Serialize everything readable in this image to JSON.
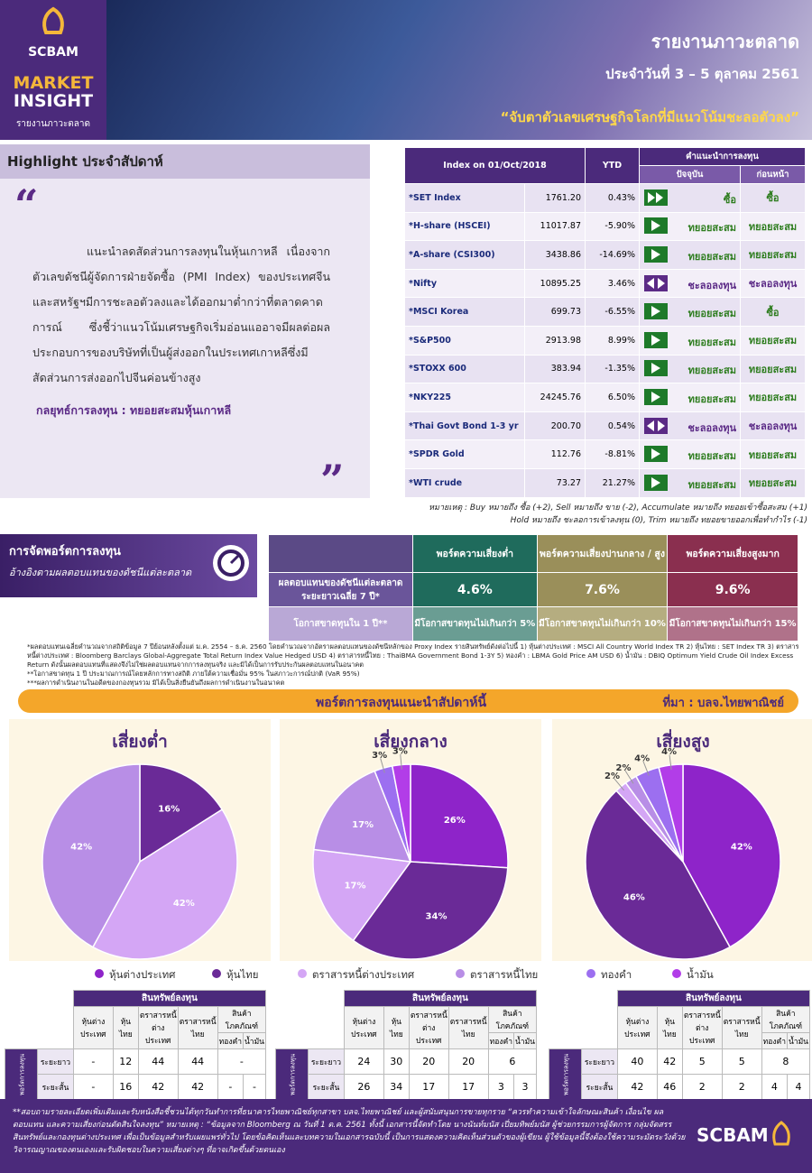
{
  "header": {
    "logo": "SCBAM",
    "brand": [
      "MARKET",
      "INSIGHT"
    ],
    "brand_sub": "รายงานภาวะตลาด",
    "title": "รายงานภาวะตลาด",
    "date": "ประจำวันที่ 3 – 5 ตุลาคม 2561",
    "tagline": "“จับตาตัวเลขเศรษฐกิจโลกที่มีแนวโน้มชะลอตัวลง”"
  },
  "highlight": {
    "title": "Highlight ประจำสัปดาห์",
    "open_quote": "“",
    "close_quote": "”",
    "body": "แนะนำลดสัดส่วนการลงทุนในหุ้นเกาหลี เนื่องจากตัวเลขดัชนีผู้จัดการฝ่ายจัดซื้อ (PMI Index) ของประเทศจีนและสหรัฐฯมีการชะลอตัวลงและได้ออกมาต่ำกว่าที่ตลาดคาดการณ์ ซึ่งชี้ว่าแนวโน้มเศรษฐกิจเริ่มอ่อนแออาจมีผลต่อผลประกอบการของบริษัทที่เป็นผู้ส่งออกในประเทศเกาหลีซึ่งมีสัดส่วนการส่งออกไปจีนค่อนข้างสูง",
    "strategy": "กลยุทธ์การลงทุน : ทยอยสะสมหุ้นเกาหลี"
  },
  "index_table": {
    "headers": [
      "Index on 01/Oct/2018",
      "YTD",
      "คำแนะนำการลงทุน",
      "ปัจจุบัน",
      "ก่อนหน้า"
    ],
    "rows": [
      [
        "*SET Index",
        "1761.20",
        "0.43%",
        "ซื้อ",
        "ซื้อ"
      ],
      [
        "*H-share (HSCEI)",
        "11017.87",
        "-5.90%",
        "ทยอยสะสม",
        "ทยอยสะสม"
      ],
      [
        "*A-share (CSI300)",
        "3438.86",
        "-14.69%",
        "ทยอยสะสม",
        "ทยอยสะสม"
      ],
      [
        "*Nifty",
        "10895.25",
        "3.46%",
        "ชะลอลงทุน",
        "ชะลอลงทุน"
      ],
      [
        "*MSCI Korea",
        "699.73",
        "-6.55%",
        "ทยอยสะสม",
        "ซื้อ"
      ],
      [
        "*S&P500",
        "2913.98",
        "8.99%",
        "ทยอยสะสม",
        "ทยอยสะสม"
      ],
      [
        "*STOXX 600",
        "383.94",
        "-1.35%",
        "ทยอยสะสม",
        "ทยอยสะสม"
      ],
      [
        "*NKY225",
        "24245.76",
        "6.50%",
        "ทยอยสะสม",
        "ทยอยสะสม"
      ],
      [
        "*Thai Govt Bond 1-3 yr",
        "200.70",
        "0.54%",
        "ชะลอลงทุน",
        "ชะลอลงทุน"
      ],
      [
        "*SPDR Gold",
        "112.76",
        "-8.81%",
        "ทยอยสะสม",
        "ทยอยสะสม"
      ],
      [
        "*WTI crude",
        "73.27",
        "21.27%",
        "ทยอยสะสม",
        "ทยอยสะสม"
      ]
    ]
  },
  "note": [
    "หมายเหตุ : Buy หมายถึง ซื้อ (+2), Sell หมายถึง ขาย (-2), Accumulate หมายถึง ทยอยเข้าซื้อสะสม (+1)",
    "Hold หมายถึง ชะลอการเข้าลงทุน (0), Trim หมายถึง ทยอยขายออกเพื่อทำกำไร (-1)"
  ],
  "portfolio": {
    "title": "การจัดพอร์ตการลงทุน",
    "subtitle": "อ้างอิงตามผลตอบแทนของดัชนีแต่ละตลาด",
    "columns": [
      "พอร์ตความเสี่ยงต่ำ",
      "พอร์ตความเสี่ยงปานกลาง / สูง",
      "พอร์ตความเสี่ยงสูงมาก"
    ],
    "rows": [
      {
        "label": "ผลตอบแทนของดัชนีแต่ละตลาดระยะยาวเฉลี่ย 7 ปี*",
        "cells": [
          "4.6%",
          "7.6%",
          "9.6%"
        ]
      },
      {
        "label": "โอกาสขาดทุนใน 1 ปี**",
        "cells": [
          "มีโอกาสขาดทุนไม่เกินกว่า 5%",
          "มีโอกาสขาดทุนไม่เกินกว่า 10%",
          "มีโอกาสขาดทุนไม่เกินกว่า 15%"
        ]
      }
    ]
  },
  "footnotes": [
    "*ผลตอบแทนเฉลี่ยคำนวณจากสถิติข้อมูล 7 ปีย้อนหลังตั้งแต่ ม.ค. 2554 – ธ.ค. 2560 โดยคำนวณจากอัตราผลตอบแทนของดัชนีหลักของ Proxy Index รายสินทรัพย์ดังต่อไปนี้ 1) หุ้นต่างประเทศ : MSCI All Country World Index TR 2) หุ้นไทย : SET Index TR 3) ตราสารหนี้ต่างประเทศ : Bloomberg Barclays Global-Aggregate Total Return Index Value Hedged USD 4) ตราสารหนี้ไทย : ThaiBMA Government Bond 1-3Y 5) ทองคำ : LBMA Gold Price AM USD 6) น้ำมัน : DBIQ Optimum Yield Crude Oil Index Excess Return ดังนั้นผลตอบแทนที่แสดงจึงไม่ใช่ผลตอบแทนจากการลงทุนจริง และมิได้เป็นการรับประกันผลตอบแทนในอนาคต",
    "**โอกาสขาดทุน 1 ปี ประมาณการณ์โดยหลักการทางสถิติ ภายใต้ความเชื่อมั่น 95% ในสภาวะการณ์ปกติ (VaR 95%)",
    "***ผลการดำเนินงานในอดีตของกองทุนรวม มิได้เป็นสิ่งยืนยันถึงผลการดำเนินงานในอนาคต"
  ],
  "banner": {
    "title": "พอร์ตการลงทุนแนะนำสัปดาห์นี้",
    "source": "ที่มา : บลจ.ไทยพาณิชย์"
  },
  "legend": {
    "names": [
      "หุ้นต่างประเทศ",
      "หุ้นไทย",
      "ตราสารหนี้ต่างประเทศ",
      "ตราสารหนี้ไทย",
      "ทองคำ",
      "น้ำมัน"
    ],
    "colors": [
      "#8e24c9",
      "#6a2a97",
      "#d4a6f5",
      "#b88ee6",
      "#9c6ff0",
      "#b23de8"
    ]
  },
  "chart_data": [
    {
      "type": "pie",
      "title": "เสี่ยงต่ำ",
      "categories": [
        "หุ้นไทย",
        "ตราสารหนี้ต่างประเทศ",
        "ตราสารหนี้ไทย"
      ],
      "values": [
        16,
        42,
        42
      ],
      "value_labels": [
        "16%",
        "42%",
        "42%"
      ],
      "colors": [
        "#6a2a97",
        "#d4a6f5",
        "#b88ee6"
      ]
    },
    {
      "type": "pie",
      "title": "เสี่ยงกลาง",
      "categories": [
        "หุ้นต่างประเทศ",
        "หุ้นไทย",
        "ตราสารหนี้ต่างประเทศ",
        "ตราสารหนี้ไทย",
        "ทองคำ",
        "น้ำมัน"
      ],
      "values": [
        26,
        34,
        17,
        17,
        3,
        3
      ],
      "value_labels": [
        "26%",
        "34%",
        "17%",
        "17%",
        "3%",
        "3%"
      ],
      "colors": [
        "#8e24c9",
        "#6a2a97",
        "#d4a6f5",
        "#b88ee6",
        "#9c6ff0",
        "#b23de8"
      ]
    },
    {
      "type": "pie",
      "title": "เสี่ยงสูง",
      "categories": [
        "หุ้นต่างประเทศ",
        "หุ้นไทย",
        "ตราสารหนี้ต่างประเทศ",
        "ตราสารหนี้ไทย",
        "ทองคำ",
        "น้ำมัน"
      ],
      "values": [
        42,
        46,
        2,
        2,
        4,
        4
      ],
      "value_labels": [
        "42%",
        "46%",
        "2%",
        "2%",
        "4%",
        "4%"
      ],
      "colors": [
        "#8e24c9",
        "#6a2a97",
        "#d4a6f5",
        "#b88ee6",
        "#9c6ff0",
        "#b23de8"
      ]
    }
  ],
  "asset_tables": {
    "header": "สินทรัพย์ลงทุน",
    "columns": [
      "หุ้นต่างประเทศ",
      "หุ้นไทย",
      "ตราสารหนี้ต่างประเทศ",
      "ตราสารหนี้ไทย",
      "สินค้าโภคภัณฑ์"
    ],
    "sub_columns": [
      "ทองคำ",
      "น้ำมัน"
    ],
    "side": "พอร์ตการลงทุน",
    "row_labels": [
      "ระยะยาว",
      "ระยะสั้น"
    ],
    "tables": [
      {
        "long": [
          "-",
          "12",
          "44",
          "44",
          "-"
        ],
        "short": [
          "-",
          "16",
          "42",
          "42",
          "-",
          "-"
        ]
      },
      {
        "long": [
          "24",
          "30",
          "20",
          "20",
          "6"
        ],
        "short": [
          "26",
          "34",
          "17",
          "17",
          "3",
          "3"
        ]
      },
      {
        "long": [
          "40",
          "42",
          "5",
          "5",
          "8"
        ],
        "short": [
          "42",
          "46",
          "2",
          "2",
          "4",
          "4"
        ]
      }
    ]
  },
  "footer": {
    "disclaimer": "**สอบถามรายละเอียดเพิ่มเติมและรับหนังสือชี้ชวนได้ทุกวันทำการที่ธนาคารไทยพาณิชย์ทุกสาขา บลจ.ไทยพาณิชย์ และผู้สนับสนุนการขายทุกราย “ควรทำความเข้าใจลักษณะสินค้า เงื่อนไข ผลตอบแทน และความเสี่ยงก่อนตัดสินใจลงทุน” หมายเหตุ : “ข้อมูลจาก Bloomberg ณ วันที่ 1 ต.ค. 2561 ทั้งนี้ เอกสารนี้จัดทำโดย นางนันท์มนัส เปี่ยมทิพย์มนัส ผู้ช่วยกรรมการผู้จัดการ กลุ่มจัดสรรสินทรัพย์และกองทุนต่างประเทศ เพื่อเป็นข้อมูลสำหรับเผยแพร่ทั่วไป โดยข้อคิดเห็นและบทความในเอกสารฉบับนี้ เป็นการแสดงความคิดเห็นส่วนตัวของผู้เขียน ผู้ใช้ข้อมูลนี้จึงต้องใช้ความระมัดระวังด้วยวิจารณญาณของตนเองและรับผิดชอบในความเสี่ยงต่างๆ ที่อาจเกิดขึ้นด้วยตนเอง",
    "logo": "SCBAM"
  }
}
